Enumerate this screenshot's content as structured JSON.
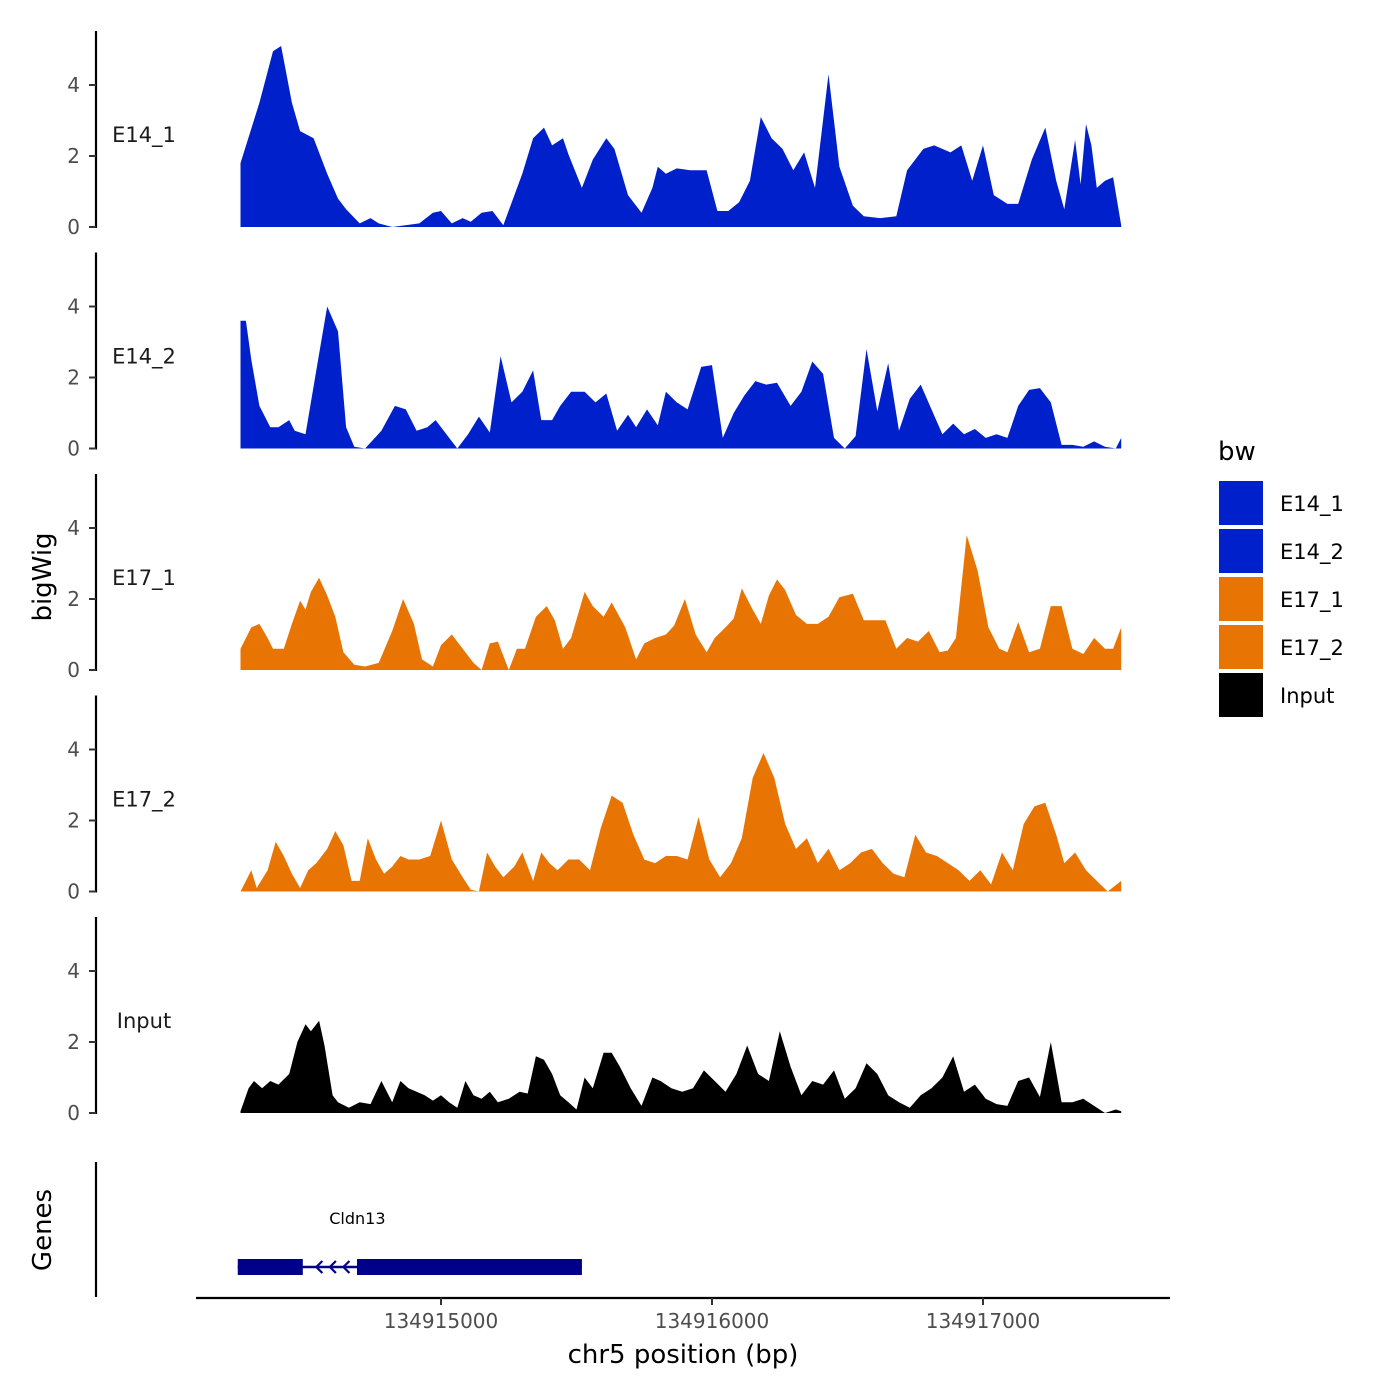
{
  "chart_data": {
    "type": "area",
    "facets": true,
    "ylabel": "bigWig",
    "xlabel": "chr5 position (bp)",
    "x_ticks": [
      134915000,
      134916000,
      134917000
    ],
    "x_tick_labels": [
      "134915000",
      "134916000",
      "134917000"
    ],
    "x_range": [
      134914260,
      134917520
    ],
    "ylim": [
      0,
      5.4
    ],
    "y_ticks": [
      0,
      2,
      4
    ],
    "y_tick_labels": [
      "0",
      "2",
      "4"
    ],
    "legend": {
      "title": "bw",
      "position": "right",
      "entries": [
        {
          "label": "E14_1",
          "color": "#0020CC"
        },
        {
          "label": "E14_2",
          "color": "#0020CC"
        },
        {
          "label": "E17_1",
          "color": "#E87503"
        },
        {
          "label": "E17_2",
          "color": "#E87503"
        },
        {
          "label": "Input",
          "color": "#000000"
        }
      ]
    },
    "series": [
      {
        "name": "E14_1",
        "color": "#0020CC",
        "x": [
          134914260,
          134914330,
          134914380,
          134914410,
          134914450,
          134914480,
          134914530,
          134914580,
          134914620,
          134914650,
          134914700,
          134914740,
          134914770,
          134914820,
          134914920,
          134914970,
          134915000,
          134915040,
          134915080,
          134915110,
          134915150,
          134915190,
          134915230,
          134915300,
          134915340,
          134915380,
          134915410,
          134915450,
          134915470,
          134915520,
          134915560,
          134915610,
          134915640,
          134915690,
          134915740,
          134915780,
          134915800,
          134915830,
          134915870,
          134915920,
          134915980,
          134916020,
          134916060,
          134916100,
          134916140,
          134916180,
          134916220,
          134916260,
          134916300,
          134916340,
          134916380,
          134916430,
          134916470,
          134916520,
          134916560,
          134916620,
          134916680,
          134916720,
          134916780,
          134916820,
          134916880,
          134916920,
          134916960,
          134917000,
          134917040,
          134917090,
          134917130,
          134917180,
          134917230,
          134917270,
          134917300,
          134917340,
          134917360,
          134917380,
          134917400,
          134917420,
          134917450,
          134917480,
          134917510
        ],
        "y": [
          1.8,
          3.5,
          4.95,
          5.1,
          3.5,
          2.7,
          2.5,
          1.5,
          0.8,
          0.5,
          0.1,
          0.25,
          0.1,
          -0.3,
          0.1,
          0.4,
          0.45,
          0.1,
          0.25,
          0.15,
          0.4,
          0.45,
          0.05,
          1.5,
          2.5,
          2.8,
          2.3,
          2.5,
          2.05,
          1.1,
          1.9,
          2.5,
          2.2,
          0.9,
          0.4,
          1.1,
          1.7,
          1.5,
          1.65,
          1.6,
          1.6,
          0.45,
          0.45,
          0.7,
          1.3,
          3.1,
          2.5,
          2.2,
          1.6,
          2.1,
          1.1,
          4.3,
          1.7,
          0.6,
          0.3,
          0.25,
          0.3,
          1.6,
          2.2,
          2.3,
          2.1,
          2.3,
          1.3,
          2.3,
          0.9,
          0.65,
          0.65,
          1.9,
          2.8,
          1.3,
          0.5,
          2.45,
          1.2,
          2.9,
          2.3,
          1.1,
          1.3,
          1.4,
          0.05
        ]
      },
      {
        "name": "E14_2",
        "color": "#0020CC",
        "x": [
          134914260,
          134914280,
          134914300,
          134914330,
          134914370,
          134914400,
          134914440,
          134914460,
          134914500,
          134914540,
          134914580,
          134914620,
          134914650,
          134914680,
          134914720,
          134914780,
          134914830,
          134914870,
          134914910,
          134914950,
          134914980,
          134915020,
          134915060,
          134915100,
          134915140,
          134915180,
          134915220,
          134915260,
          134915300,
          134915340,
          134915370,
          134915410,
          134915440,
          134915480,
          134915530,
          134915570,
          134915610,
          134915650,
          134915690,
          134915720,
          134915760,
          134915800,
          134915830,
          134915870,
          134915910,
          134915960,
          134916000,
          134916040,
          134916080,
          134916120,
          134916160,
          134916200,
          134916240,
          134916290,
          134916330,
          134916370,
          134916410,
          134916450,
          134916490,
          134916530,
          134916570,
          134916610,
          134916650,
          134916690,
          134916730,
          134916770,
          134916810,
          134916850,
          134916890,
          134916930,
          134916970,
          134917010,
          134917050,
          134917090,
          134917130,
          134917170,
          134917210,
          134917250,
          134917290,
          134917330,
          134917370,
          134917410,
          134917450,
          134917490,
          134917510
        ],
        "y": [
          3.6,
          3.6,
          2.5,
          1.2,
          0.6,
          0.6,
          0.8,
          0.5,
          0.4,
          2.2,
          4.0,
          3.3,
          0.6,
          0.05,
          -0.05,
          0.5,
          1.2,
          1.1,
          0.5,
          0.6,
          0.8,
          0.4,
          -0.05,
          0.4,
          0.9,
          0.45,
          2.6,
          1.3,
          1.6,
          2.2,
          0.8,
          0.8,
          1.2,
          1.6,
          1.6,
          1.3,
          1.55,
          0.5,
          0.95,
          0.6,
          1.1,
          0.65,
          1.6,
          1.3,
          1.1,
          2.3,
          2.35,
          0.3,
          1.0,
          1.5,
          1.9,
          1.8,
          1.85,
          1.2,
          1.6,
          2.45,
          2.1,
          0.3,
          -0.05,
          0.35,
          2.8,
          1.05,
          2.4,
          0.5,
          1.4,
          1.8,
          1.1,
          0.4,
          0.7,
          0.4,
          0.55,
          0.3,
          0.4,
          0.3,
          1.2,
          1.65,
          1.7,
          1.3,
          0.1,
          0.1,
          0.05,
          0.2,
          0.05,
          -0.05,
          0.3
        ]
      },
      {
        "name": "E17_1",
        "color": "#E87503",
        "x": [
          134914260,
          134914300,
          134914330,
          134914360,
          134914380,
          134914420,
          134914450,
          134914480,
          134914500,
          134914520,
          134914550,
          134914580,
          134914610,
          134914640,
          134914680,
          134914720,
          134914770,
          134914820,
          134914860,
          134914900,
          134914930,
          134914970,
          134915000,
          134915040,
          134915080,
          134915120,
          134915150,
          134915180,
          134915210,
          134915250,
          134915280,
          134915310,
          134915350,
          134915390,
          134915420,
          134915450,
          134915480,
          134915530,
          134915560,
          134915600,
          134915630,
          134915680,
          134915720,
          134915750,
          134915790,
          134915830,
          134915860,
          134915900,
          134915940,
          134915980,
          134916010,
          134916050,
          134916080,
          134916110,
          134916150,
          134916180,
          134916210,
          134916240,
          134916270,
          134916310,
          134916350,
          134916390,
          134916430,
          134916470,
          134916520,
          134916560,
          134916600,
          134916640,
          134916680,
          134916720,
          134916760,
          134916800,
          134916840,
          134916870,
          134916900,
          134916940,
          134916980,
          134917020,
          134917060,
          134917090,
          134917130,
          134917170,
          134917210,
          134917250,
          134917290,
          134917330,
          134917370,
          134917410,
          134917450,
          134917480,
          134917510
        ],
        "y": [
          0.6,
          1.2,
          1.3,
          0.9,
          0.6,
          0.6,
          1.3,
          1.95,
          1.7,
          2.2,
          2.6,
          2.1,
          1.5,
          0.5,
          0.15,
          0.1,
          0.2,
          1.1,
          2.0,
          1.3,
          0.3,
          0.1,
          0.7,
          1.0,
          0.6,
          0.2,
          -0.1,
          0.75,
          0.8,
          -0.05,
          0.6,
          0.6,
          1.5,
          1.8,
          1.4,
          0.6,
          0.9,
          2.2,
          1.8,
          1.5,
          1.9,
          1.2,
          0.3,
          0.75,
          0.9,
          1.0,
          1.25,
          2.0,
          1.0,
          0.5,
          0.9,
          1.2,
          1.45,
          2.3,
          1.7,
          1.3,
          2.1,
          2.55,
          2.25,
          1.55,
          1.3,
          1.3,
          1.5,
          2.05,
          2.15,
          1.4,
          1.4,
          1.4,
          0.6,
          0.9,
          0.8,
          1.1,
          0.5,
          0.55,
          0.9,
          3.8,
          2.8,
          1.2,
          0.6,
          0.5,
          1.35,
          0.5,
          0.6,
          1.8,
          1.8,
          0.6,
          0.45,
          0.9,
          0.6,
          0.6,
          1.2
        ]
      },
      {
        "name": "E17_2",
        "color": "#E87503",
        "x": [
          134914260,
          134914300,
          134914320,
          134914360,
          134914390,
          134914420,
          134914450,
          134914480,
          134914510,
          134914540,
          134914580,
          134914610,
          134914640,
          134914670,
          134914700,
          134914730,
          134914760,
          134914790,
          134914820,
          134914850,
          134914880,
          134914920,
          134914960,
          134915000,
          134915040,
          134915080,
          134915110,
          134915140,
          134915170,
          134915200,
          134915230,
          134915270,
          134915300,
          134915340,
          134915370,
          134915400,
          134915430,
          134915470,
          134915510,
          134915550,
          134915590,
          134915630,
          134915670,
          134915710,
          134915750,
          134915790,
          134915830,
          134915870,
          134915910,
          134915950,
          134915990,
          134916030,
          134916070,
          134916110,
          134916150,
          134916190,
          134916230,
          134916270,
          134916310,
          134916350,
          134916390,
          134916430,
          134916470,
          134916510,
          134916550,
          134916590,
          134916630,
          134916670,
          134916710,
          134916750,
          134916790,
          134916830,
          134916870,
          134916910,
          134916950,
          134916990,
          134917030,
          134917070,
          134917110,
          134917150,
          134917190,
          134917230,
          134917270,
          134917300,
          134917340,
          134917380,
          134917420,
          134917460,
          134917510
        ],
        "y": [
          0,
          0.6,
          0.1,
          0.6,
          1.4,
          1.0,
          0.5,
          0.1,
          0.6,
          0.8,
          1.2,
          1.7,
          1.3,
          0.3,
          0.3,
          1.5,
          0.9,
          0.5,
          0.7,
          1.0,
          0.9,
          0.9,
          1.0,
          2.0,
          0.9,
          0.4,
          0.05,
          -0.1,
          1.1,
          0.7,
          0.4,
          0.7,
          1.1,
          0.3,
          1.1,
          0.8,
          0.6,
          0.9,
          0.9,
          0.6,
          1.8,
          2.7,
          2.5,
          1.6,
          0.9,
          0.8,
          1.0,
          1.0,
          0.9,
          2.1,
          0.9,
          0.4,
          0.8,
          1.5,
          3.2,
          3.9,
          3.2,
          1.9,
          1.2,
          1.5,
          0.8,
          1.2,
          0.6,
          0.8,
          1.1,
          1.2,
          0.8,
          0.5,
          0.4,
          1.6,
          1.1,
          1.0,
          0.8,
          0.6,
          0.3,
          0.6,
          0.2,
          1.1,
          0.6,
          1.9,
          2.4,
          2.5,
          1.6,
          0.8,
          1.1,
          0.6,
          0.3,
          -0.1,
          0.3
        ]
      },
      {
        "name": "Input",
        "color": "#000000",
        "x": [
          134914260,
          134914290,
          134914310,
          134914340,
          134914370,
          134914400,
          134914440,
          134914470,
          134914500,
          134914520,
          134914550,
          134914570,
          134914600,
          134914620,
          134914660,
          134914700,
          134914740,
          134914780,
          134914820,
          134914850,
          134914880,
          134914910,
          134914940,
          134914970,
          134915000,
          134915030,
          134915060,
          134915090,
          134915120,
          134915150,
          134915180,
          134915210,
          134915250,
          134915290,
          134915320,
          134915350,
          134915380,
          134915410,
          134915440,
          134915470,
          134915500,
          134915530,
          134915560,
          134915600,
          134915630,
          134915660,
          134915700,
          134915740,
          134915780,
          134915810,
          134915850,
          134915890,
          134915930,
          134915970,
          134916010,
          134916050,
          134916090,
          134916130,
          134916170,
          134916210,
          134916250,
          134916290,
          134916330,
          134916370,
          134916410,
          134916450,
          134916490,
          134916530,
          134916570,
          134916610,
          134916650,
          134916690,
          134916730,
          134916770,
          134916810,
          134916850,
          134916890,
          134916930,
          134916970,
          134917010,
          134917050,
          134917090,
          134917130,
          134917170,
          134917210,
          134917250,
          134917290,
          134917330,
          134917370,
          134917410,
          134917450,
          134917490,
          134917510
        ],
        "y": [
          0.05,
          0.7,
          0.9,
          0.7,
          0.9,
          0.8,
          1.1,
          2.0,
          2.5,
          2.3,
          2.6,
          1.9,
          0.5,
          0.3,
          0.15,
          0.3,
          0.25,
          0.9,
          0.3,
          0.9,
          0.7,
          0.6,
          0.5,
          0.35,
          0.5,
          0.3,
          0.15,
          0.9,
          0.5,
          0.4,
          0.6,
          0.3,
          0.4,
          0.6,
          0.55,
          1.6,
          1.5,
          1.1,
          0.5,
          0.3,
          0.1,
          1.0,
          0.7,
          1.7,
          1.7,
          1.3,
          0.7,
          0.2,
          1.0,
          0.9,
          0.7,
          0.6,
          0.7,
          1.2,
          0.9,
          0.6,
          1.1,
          1.9,
          1.1,
          0.9,
          2.3,
          1.3,
          0.5,
          0.9,
          0.8,
          1.2,
          0.4,
          0.7,
          1.4,
          1.1,
          0.5,
          0.3,
          0.15,
          0.5,
          0.7,
          1.0,
          1.6,
          0.6,
          0.8,
          0.4,
          0.25,
          0.2,
          0.9,
          1.0,
          0.45,
          2.0,
          0.3,
          0.3,
          0.4,
          0.2,
          0.0,
          0.1,
          0.05
        ]
      }
    ],
    "genes_track": {
      "label": "Genes",
      "genes": [
        {
          "name": "Cldn13",
          "strand": "-",
          "start": 134914250,
          "end": 134915520,
          "exons": [
            [
              134914250,
              134914490
            ],
            [
              134914690,
              134915520
            ]
          ]
        }
      ]
    }
  }
}
